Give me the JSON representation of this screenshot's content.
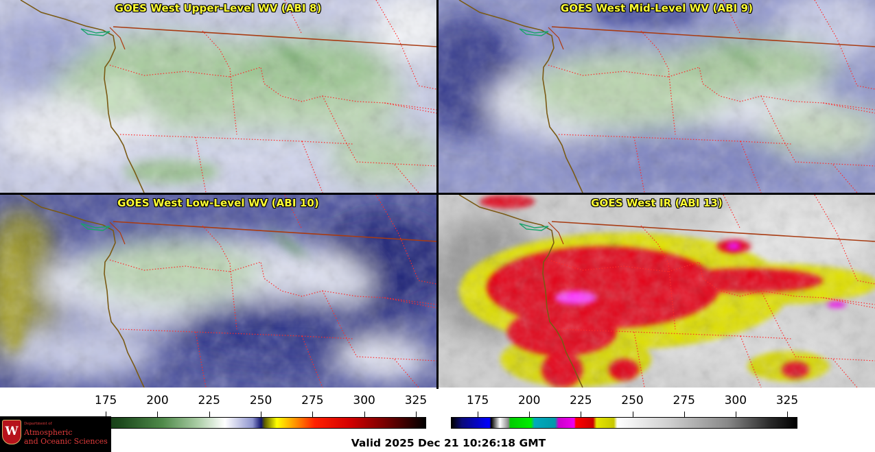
{
  "panels": [
    {
      "id": "upper",
      "title": "GOES West Upper-Level WV (ABI 8)"
    },
    {
      "id": "mid",
      "title": "GOES West Mid-Level WV (ABI 9)"
    },
    {
      "id": "low",
      "title": "GOES West Low-Level WV (ABI 10)"
    },
    {
      "id": "ir",
      "title": "GOES West IR (ABI 13)"
    }
  ],
  "colorbars": [
    {
      "id": "wv-colorbar",
      "ticks": [
        "175",
        "200",
        "225",
        "250",
        "275",
        "300",
        "325"
      ],
      "tick_values": [
        175,
        200,
        225,
        250,
        275,
        300,
        325
      ],
      "range": [
        162,
        330
      ]
    },
    {
      "id": "ir-colorbar",
      "ticks": [
        "175",
        "200",
        "225",
        "250",
        "275",
        "300",
        "325"
      ],
      "tick_values": [
        175,
        200,
        225,
        250,
        275,
        300,
        325
      ],
      "range": [
        162,
        330
      ]
    }
  ],
  "logo": {
    "dept": "Department of",
    "line1": "Atmospheric",
    "line2": "and Oceanic Sciences",
    "shield_letter": "W"
  },
  "valid_time": "Valid 2025 Dec 21 10:26:18 GMT",
  "colors": {
    "title_text": "#ffff33",
    "state_border": "#ff2a2a",
    "coast": "#8a5a1a",
    "intl_border": "#b03a10"
  }
}
